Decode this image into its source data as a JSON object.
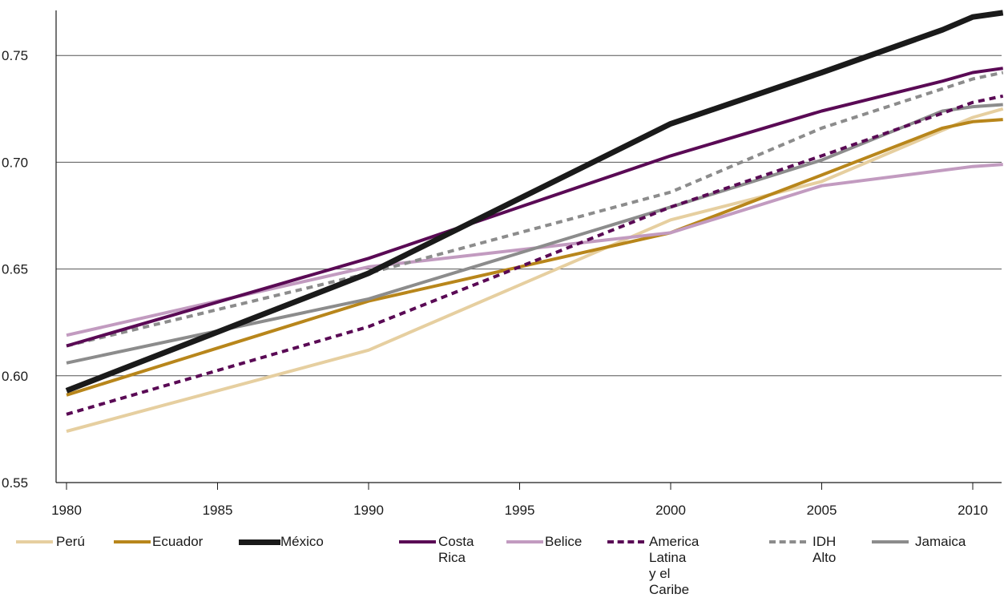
{
  "chart_data": {
    "type": "line",
    "title": "",
    "xlabel": "",
    "ylabel": "",
    "xlim": [
      1980,
      2011
    ],
    "ylim": [
      0.55,
      0.77
    ],
    "x_ticks": [
      "1980",
      "1985",
      "1990",
      "1995",
      "2000",
      "2005",
      "2010"
    ],
    "y_ticks": [
      "0.55",
      "0.60",
      "0.65",
      "0.70",
      "0.75"
    ],
    "grid": "horizontal",
    "legend_position": "bottom",
    "series": [
      {
        "name": "Perú",
        "color": "#e6cfa0",
        "style": "solid",
        "weight": "normal",
        "points": [
          [
            1980,
            0.574
          ],
          [
            1990,
            0.612
          ],
          [
            2000,
            0.673
          ],
          [
            2005,
            0.691
          ],
          [
            2010,
            0.721
          ],
          [
            2011,
            0.725
          ]
        ]
      },
      {
        "name": "Ecuador",
        "color": "#b8861b",
        "style": "solid",
        "weight": "normal",
        "points": [
          [
            1980,
            0.591
          ],
          [
            1990,
            0.635
          ],
          [
            2000,
            0.667
          ],
          [
            2005,
            0.694
          ],
          [
            2009,
            0.716
          ],
          [
            2010,
            0.719
          ],
          [
            2011,
            0.72
          ]
        ]
      },
      {
        "name": "México",
        "color": "#1a1a1a",
        "style": "solid",
        "weight": "bold",
        "points": [
          [
            1980,
            0.593
          ],
          [
            1990,
            0.648
          ],
          [
            2000,
            0.718
          ],
          [
            2005,
            0.742
          ],
          [
            2009,
            0.762
          ],
          [
            2010,
            0.768
          ],
          [
            2011,
            0.77
          ]
        ]
      },
      {
        "name": "Costa Rica",
        "color": "#5a0a55",
        "style": "solid",
        "weight": "normal",
        "points": [
          [
            1980,
            0.614
          ],
          [
            1990,
            0.655
          ],
          [
            2000,
            0.703
          ],
          [
            2005,
            0.724
          ],
          [
            2009,
            0.738
          ],
          [
            2010,
            0.742
          ],
          [
            2011,
            0.744
          ]
        ]
      },
      {
        "name": "Belice",
        "color": "#c29bc0",
        "style": "solid",
        "weight": "normal",
        "points": [
          [
            1980,
            0.619
          ],
          [
            1990,
            0.651
          ],
          [
            2000,
            0.667
          ],
          [
            2005,
            0.689
          ],
          [
            2010,
            0.698
          ],
          [
            2011,
            0.699
          ]
        ]
      },
      {
        "name": "America Latina\ny el Caribe",
        "color": "#5a0a55",
        "style": "dashed",
        "weight": "normal",
        "points": [
          [
            1980,
            0.582
          ],
          [
            1990,
            0.623
          ],
          [
            2000,
            0.679
          ],
          [
            2005,
            0.703
          ],
          [
            2010,
            0.728
          ],
          [
            2011,
            0.731
          ]
        ]
      },
      {
        "name": "IDH\nAlto",
        "color": "#8c8c8c",
        "style": "dashed",
        "weight": "normal",
        "points": [
          [
            1980,
            0.614
          ],
          [
            1990,
            0.648
          ],
          [
            2000,
            0.686
          ],
          [
            2005,
            0.716
          ],
          [
            2010,
            0.739
          ],
          [
            2011,
            0.742
          ]
        ]
      },
      {
        "name": "Jamaica",
        "color": "#8c8c8c",
        "style": "solid",
        "weight": "normal",
        "points": [
          [
            1980,
            0.606
          ],
          [
            1990,
            0.636
          ],
          [
            2000,
            0.679
          ],
          [
            2005,
            0.701
          ],
          [
            2009,
            0.724
          ],
          [
            2010,
            0.726
          ],
          [
            2011,
            0.727
          ]
        ]
      }
    ]
  }
}
